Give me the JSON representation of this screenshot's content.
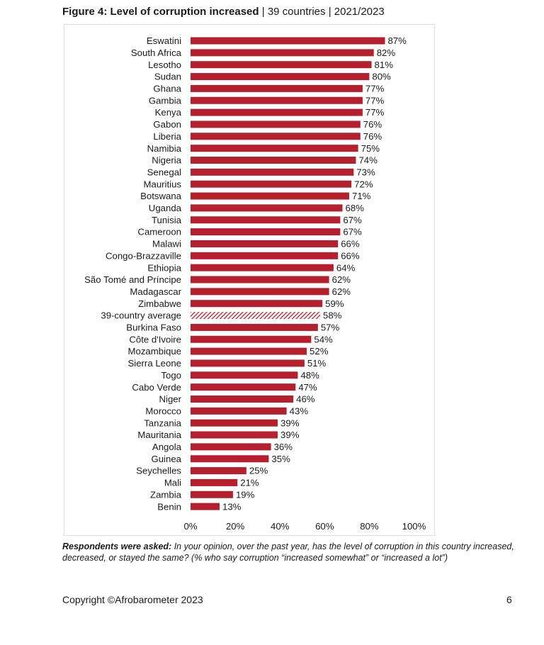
{
  "figure": {
    "title_bold": "Figure 4: Level of corruption increased",
    "separator": "|",
    "subtitle_countries": "39 countries",
    "subtitle_years": "2021/2023"
  },
  "chart_data": {
    "type": "bar",
    "orientation": "horizontal",
    "title": "Figure 4: Level of corruption increased | 39 countries | 2021/2023",
    "categories": [
      "Eswatini",
      "South Africa",
      "Lesotho",
      "Sudan",
      "Ghana",
      "Gambia",
      "Kenya",
      "Gabon",
      "Liberia",
      "Namibia",
      "Nigeria",
      "Senegal",
      "Mauritius",
      "Botswana",
      "Uganda",
      "Tunisia",
      "Cameroon",
      "Malawi",
      "Congo-Brazzaville",
      "Ethiopia",
      "São Tomé and Príncipe",
      "Madagascar",
      "Zimbabwe",
      "39-country average",
      "Burkina Faso",
      "Côte d'Ivoire",
      "Mozambique",
      "Sierra Leone",
      "Togo",
      "Cabo Verde",
      "Niger",
      "Morocco",
      "Tanzania",
      "Mauritania",
      "Angola",
      "Guinea",
      "Seychelles",
      "Mali",
      "Zambia",
      "Benin"
    ],
    "values": [
      87,
      82,
      81,
      80,
      77,
      77,
      77,
      76,
      76,
      75,
      74,
      73,
      72,
      71,
      68,
      67,
      67,
      66,
      66,
      64,
      62,
      62,
      59,
      58,
      57,
      54,
      52,
      51,
      48,
      47,
      46,
      43,
      39,
      39,
      36,
      35,
      25,
      21,
      19,
      13
    ],
    "value_labels": [
      "87%",
      "82%",
      "81%",
      "80%",
      "77%",
      "77%",
      "77%",
      "76%",
      "76%",
      "75%",
      "74%",
      "73%",
      "72%",
      "71%",
      "68%",
      "67%",
      "67%",
      "66%",
      "66%",
      "64%",
      "62%",
      "62%",
      "59%",
      "58%",
      "57%",
      "54%",
      "52%",
      "51%",
      "48%",
      "47%",
      "46%",
      "43%",
      "39%",
      "39%",
      "36%",
      "35%",
      "25%",
      "21%",
      "19%",
      "13%"
    ],
    "highlight_category": "39-country average",
    "xlim": [
      0,
      100
    ],
    "x_ticks": [
      0,
      20,
      40,
      60,
      80,
      100
    ],
    "x_tick_labels": [
      "0%",
      "20%",
      "40%",
      "60%",
      "80%",
      "100%"
    ],
    "xlabel": "",
    "ylabel": "",
    "grid": false,
    "legend": "none",
    "bar_color": "#b5202e",
    "average_stripe_color": "#b5202e"
  },
  "footnote": {
    "lead": "Respondents were asked:",
    "text": " In your opinion, over the past year, has the level of corruption in this country increased, decreased, or stayed the same? (% who say corruption “increased somewhat” or “increased a lot”)"
  },
  "footer": {
    "copyright": "Copyright ©Afrobarometer 2023",
    "page_number": "6"
  }
}
